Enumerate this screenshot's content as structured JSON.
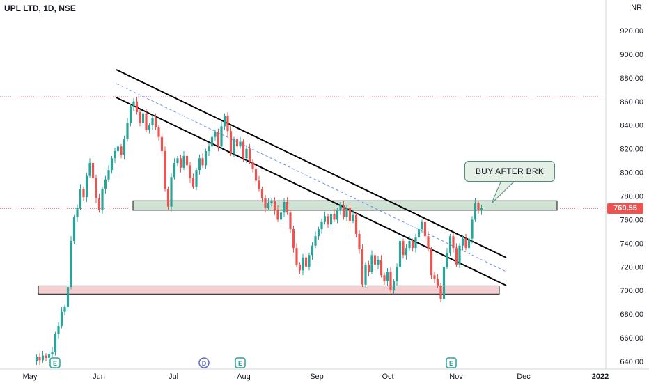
{
  "header": {
    "title": "UPL LTD, 1D, NSE",
    "currency": "INR"
  },
  "price_tag": "769.55",
  "callout": "BUY AFTER BRK",
  "events": [
    "E",
    "D",
    "E",
    "E"
  ],
  "colors": {
    "up": "#26a69a",
    "down": "#ef5350",
    "resistance_zone": "#cfe3d5",
    "support_zone": "#f5cfd2",
    "channel": "#000000",
    "midline": "#2962ff"
  },
  "chart_data": {
    "type": "candlestick",
    "title": "UPL LTD, 1D, NSE",
    "xlabel": "",
    "ylabel": "",
    "y_axis_side": "right",
    "ylim": [
      634,
      946
    ],
    "y_ticks": [
      "920.00",
      "900.00",
      "880.00",
      "860.00",
      "840.00",
      "820.00",
      "800.00",
      "780.00",
      "760.00",
      "740.00",
      "720.00",
      "700.00",
      "680.00",
      "660.00",
      "640.00"
    ],
    "x_ticks": [
      "May",
      "Jun",
      "Jul",
      "Aug",
      "Sep",
      "Oct",
      "Nov",
      "Dec",
      "2022"
    ],
    "last_price": 769.55,
    "series": [
      {
        "values": [
          {
            "o": 640,
            "c": 644
          },
          {
            "o": 644,
            "c": 641
          },
          {
            "o": 641,
            "c": 645
          },
          {
            "o": 645,
            "c": 643
          },
          {
            "o": 643,
            "c": 646
          },
          {
            "o": 646,
            "c": 648
          },
          {
            "o": 648,
            "c": 663
          },
          {
            "o": 663,
            "c": 670
          },
          {
            "o": 670,
            "c": 682
          },
          {
            "o": 682,
            "c": 686
          },
          {
            "o": 686,
            "c": 703
          },
          {
            "o": 703,
            "c": 742
          },
          {
            "o": 742,
            "c": 762
          },
          {
            "o": 762,
            "c": 770
          },
          {
            "o": 770,
            "c": 786
          },
          {
            "o": 786,
            "c": 779
          },
          {
            "o": 779,
            "c": 797
          },
          {
            "o": 797,
            "c": 808
          },
          {
            "o": 808,
            "c": 795
          },
          {
            "o": 795,
            "c": 778
          },
          {
            "o": 778,
            "c": 768
          },
          {
            "o": 768,
            "c": 786
          },
          {
            "o": 786,
            "c": 794
          },
          {
            "o": 794,
            "c": 802
          },
          {
            "o": 802,
            "c": 812
          },
          {
            "o": 812,
            "c": 818
          },
          {
            "o": 818,
            "c": 822
          },
          {
            "o": 822,
            "c": 815
          },
          {
            "o": 815,
            "c": 828
          },
          {
            "o": 828,
            "c": 842
          },
          {
            "o": 842,
            "c": 856
          },
          {
            "o": 856,
            "c": 860
          },
          {
            "o": 860,
            "c": 851
          },
          {
            "o": 851,
            "c": 842
          },
          {
            "o": 842,
            "c": 850
          },
          {
            "o": 850,
            "c": 836
          },
          {
            "o": 836,
            "c": 840
          },
          {
            "o": 840,
            "c": 846
          },
          {
            "o": 846,
            "c": 838
          },
          {
            "o": 838,
            "c": 830
          },
          {
            "o": 830,
            "c": 818
          },
          {
            "o": 818,
            "c": 786
          },
          {
            "o": 786,
            "c": 771
          },
          {
            "o": 771,
            "c": 796
          },
          {
            "o": 796,
            "c": 808
          },
          {
            "o": 808,
            "c": 812
          },
          {
            "o": 812,
            "c": 804
          },
          {
            "o": 804,
            "c": 814
          },
          {
            "o": 814,
            "c": 806
          },
          {
            "o": 806,
            "c": 795
          },
          {
            "o": 795,
            "c": 788
          },
          {
            "o": 788,
            "c": 802
          },
          {
            "o": 802,
            "c": 812
          },
          {
            "o": 812,
            "c": 806
          },
          {
            "o": 806,
            "c": 818
          },
          {
            "o": 818,
            "c": 822
          },
          {
            "o": 822,
            "c": 830
          },
          {
            "o": 830,
            "c": 834
          },
          {
            "o": 834,
            "c": 822
          },
          {
            "o": 822,
            "c": 839
          },
          {
            "o": 839,
            "c": 848
          },
          {
            "o": 848,
            "c": 835
          },
          {
            "o": 835,
            "c": 816
          },
          {
            "o": 816,
            "c": 828
          },
          {
            "o": 828,
            "c": 822
          },
          {
            "o": 822,
            "c": 826
          },
          {
            "o": 826,
            "c": 812
          },
          {
            "o": 812,
            "c": 820
          },
          {
            "o": 820,
            "c": 809
          },
          {
            "o": 809,
            "c": 803
          },
          {
            "o": 803,
            "c": 793
          },
          {
            "o": 793,
            "c": 786
          },
          {
            "o": 786,
            "c": 778
          },
          {
            "o": 778,
            "c": 770
          },
          {
            "o": 770,
            "c": 774
          },
          {
            "o": 774,
            "c": 776
          },
          {
            "o": 776,
            "c": 768
          },
          {
            "o": 768,
            "c": 760
          },
          {
            "o": 760,
            "c": 766
          },
          {
            "o": 766,
            "c": 775
          },
          {
            "o": 775,
            "c": 766
          },
          {
            "o": 766,
            "c": 752
          },
          {
            "o": 752,
            "c": 736
          },
          {
            "o": 736,
            "c": 722
          },
          {
            "o": 722,
            "c": 717
          },
          {
            "o": 717,
            "c": 728
          },
          {
            "o": 728,
            "c": 720
          },
          {
            "o": 720,
            "c": 730
          },
          {
            "o": 730,
            "c": 738
          },
          {
            "o": 738,
            "c": 746
          },
          {
            "o": 746,
            "c": 752
          },
          {
            "o": 752,
            "c": 758
          },
          {
            "o": 758,
            "c": 763
          },
          {
            "o": 763,
            "c": 756
          },
          {
            "o": 756,
            "c": 765
          },
          {
            "o": 765,
            "c": 760
          },
          {
            "o": 760,
            "c": 768
          },
          {
            "o": 768,
            "c": 772
          },
          {
            "o": 772,
            "c": 762
          },
          {
            "o": 762,
            "c": 770
          },
          {
            "o": 770,
            "c": 759
          },
          {
            "o": 759,
            "c": 764
          },
          {
            "o": 764,
            "c": 748
          },
          {
            "o": 748,
            "c": 735
          },
          {
            "o": 735,
            "c": 705
          },
          {
            "o": 705,
            "c": 722
          },
          {
            "o": 722,
            "c": 716
          },
          {
            "o": 716,
            "c": 730
          },
          {
            "o": 730,
            "c": 722
          },
          {
            "o": 722,
            "c": 726
          },
          {
            "o": 726,
            "c": 713
          },
          {
            "o": 713,
            "c": 708
          },
          {
            "o": 708,
            "c": 716
          },
          {
            "o": 716,
            "c": 700
          },
          {
            "o": 700,
            "c": 708
          },
          {
            "o": 708,
            "c": 720
          },
          {
            "o": 720,
            "c": 742
          },
          {
            "o": 742,
            "c": 730
          },
          {
            "o": 730,
            "c": 736
          },
          {
            "o": 736,
            "c": 742
          },
          {
            "o": 742,
            "c": 736
          },
          {
            "o": 736,
            "c": 745
          },
          {
            "o": 745,
            "c": 752
          },
          {
            "o": 752,
            "c": 758
          },
          {
            "o": 758,
            "c": 746
          },
          {
            "o": 746,
            "c": 735
          },
          {
            "o": 735,
            "c": 713
          },
          {
            "o": 713,
            "c": 710
          },
          {
            "o": 710,
            "c": 704
          },
          {
            "o": 704,
            "c": 693
          },
          {
            "o": 693,
            "c": 720
          },
          {
            "o": 720,
            "c": 732
          },
          {
            "o": 732,
            "c": 746
          },
          {
            "o": 746,
            "c": 736
          },
          {
            "o": 736,
            "c": 722
          },
          {
            "o": 722,
            "c": 738
          },
          {
            "o": 738,
            "c": 744
          },
          {
            "o": 744,
            "c": 736
          },
          {
            "o": 736,
            "c": 744
          },
          {
            "o": 744,
            "c": 760
          },
          {
            "o": 760,
            "c": 774
          },
          {
            "o": 774,
            "c": 768
          },
          {
            "o": 768,
            "c": 769.55
          }
        ]
      }
    ],
    "zones": [
      {
        "name": "resistance",
        "low": 768,
        "high": 776
      },
      {
        "name": "support",
        "low": 697,
        "high": 704
      }
    ]
  }
}
